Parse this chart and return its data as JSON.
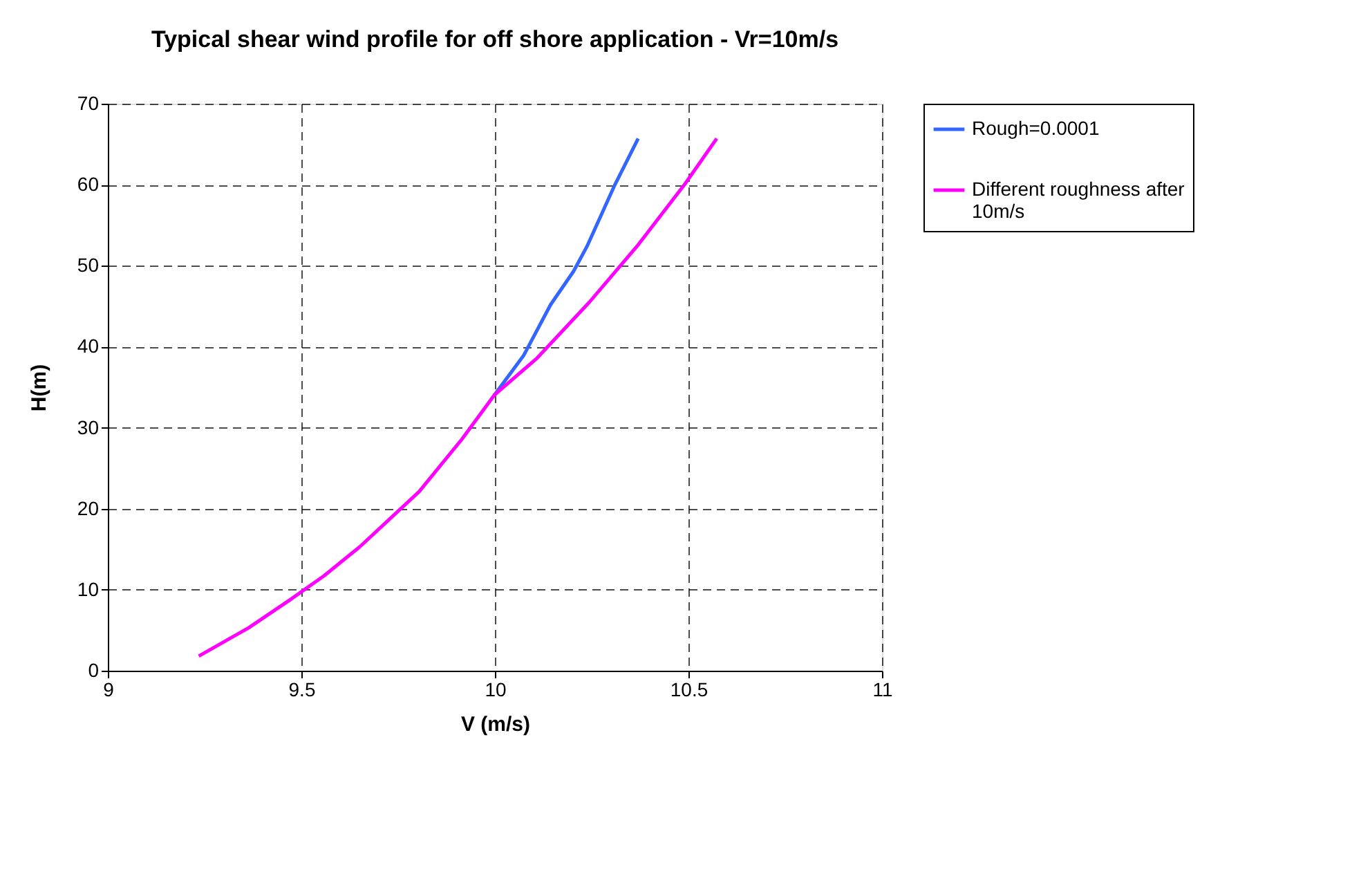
{
  "chart_data": {
    "type": "line",
    "title": "Typical shear wind profile for off shore application - Vr=10m/s",
    "xlabel": "V (m/s)",
    "ylabel": "H(m)",
    "xlim": [
      9,
      11
    ],
    "xticks": [
      9,
      9.5,
      10,
      10.5,
      11
    ],
    "ylim": [
      0,
      70
    ],
    "yticks": [
      0,
      10,
      20,
      30,
      40,
      50,
      60,
      70
    ],
    "grid": true,
    "legend": "right",
    "marker": "none",
    "line_style": "solid",
    "series": [
      {
        "name": "Rough=0.0001",
        "color": "#3366ff",
        "x": [
          9.998,
          10.074,
          10.144,
          10.203,
          10.238,
          10.308,
          10.37
        ],
        "values": [
          34.0,
          38.9,
          45.2,
          49.3,
          52.4,
          59.8,
          65.7
        ]
      },
      {
        "name": "Different roughness after 10m/s",
        "color": "#ff00ff",
        "x": [
          9.235,
          9.364,
          9.469,
          9.558,
          9.651,
          9.804,
          9.915,
          9.998,
          10.109,
          10.244,
          10.367,
          10.491,
          10.573
        ],
        "values": [
          1.8,
          5.3,
          8.7,
          11.7,
          15.3,
          22.1,
          28.6,
          34.0,
          38.6,
          45.5,
          52.4,
          60.1,
          65.7
        ]
      }
    ]
  }
}
